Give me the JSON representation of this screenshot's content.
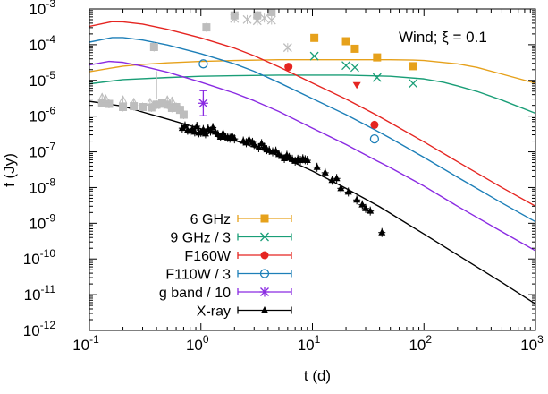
{
  "chart_data": {
    "type": "scatter",
    "title": "",
    "xlabel": "t (d)",
    "ylabel": "f (Jy)",
    "x_scale": "log",
    "y_scale": "log",
    "xlim": [
      0.1,
      1000
    ],
    "ylim": [
      1e-12,
      0.001
    ],
    "x_ticks": [
      {
        "value": 0.1,
        "base": "10",
        "exp": "-1"
      },
      {
        "value": 1,
        "base": "10",
        "exp": "0"
      },
      {
        "value": 10,
        "base": "10",
        "exp": "1"
      },
      {
        "value": 100,
        "base": "10",
        "exp": "2"
      },
      {
        "value": 1000,
        "base": "10",
        "exp": "3"
      }
    ],
    "y_ticks": [
      {
        "value": 1e-12,
        "base": "10",
        "exp": "-12"
      },
      {
        "value": 1e-11,
        "base": "10",
        "exp": "-11"
      },
      {
        "value": 1e-10,
        "base": "10",
        "exp": "-10"
      },
      {
        "value": 1e-09,
        "base": "10",
        "exp": "-9"
      },
      {
        "value": 1e-08,
        "base": "10",
        "exp": "-8"
      },
      {
        "value": 1e-07,
        "base": "10",
        "exp": "-7"
      },
      {
        "value": 1e-06,
        "base": "10",
        "exp": "-6"
      },
      {
        "value": 1e-05,
        "base": "10",
        "exp": "-5"
      },
      {
        "value": 0.0001,
        "base": "10",
        "exp": "-4"
      },
      {
        "value": 0.001,
        "base": "10",
        "exp": "-3"
      }
    ],
    "grid": false,
    "legend_position": "bottom-left",
    "annotation": "Wind; ξ = 0.1",
    "series": [
      {
        "name": "6 GHz",
        "color": "#e6a11b",
        "marker": "square",
        "points": [
          [
            10.4,
            0.000155
          ],
          [
            20,
            0.000125
          ],
          [
            24,
            7.7e-05
          ],
          [
            38,
            4.4e-05
          ],
          [
            80,
            2.5e-05
          ]
        ]
      },
      {
        "name": "9 GHz / 3",
        "color": "#1a9e77",
        "marker": "x",
        "points": [
          [
            10.4,
            4.8e-05
          ],
          [
            20,
            2.6e-05
          ],
          [
            24,
            2.3e-05
          ],
          [
            38,
            1.2e-05
          ],
          [
            80,
            8.2e-06
          ]
        ]
      },
      {
        "name": "F160W",
        "color": "#e52521",
        "marker": "filled-circle",
        "points": [
          [
            6.1,
            2.4e-05
          ],
          [
            36,
            5.7e-07
          ]
        ]
      },
      {
        "name": "F110W / 3",
        "color": "#1d7fb8",
        "marker": "open-circle",
        "points": [
          [
            1.05,
            2.9e-05
          ],
          [
            36,
            2.3e-07
          ]
        ]
      },
      {
        "name": "g band / 10",
        "color": "#8a2be2",
        "marker": "star",
        "points": [
          [
            1.05,
            2.3e-06
          ]
        ]
      },
      {
        "name": "X-ray",
        "color": "#000000",
        "marker": "filled-triangle",
        "points": [
          [
            0.68,
            4.6e-07
          ],
          [
            0.72,
            5.3e-07
          ],
          [
            0.76,
            4e-07
          ],
          [
            0.8,
            3.8e-07
          ],
          [
            0.84,
            4.3e-07
          ],
          [
            0.88,
            3.6e-07
          ],
          [
            0.92,
            5.2e-07
          ],
          [
            0.96,
            3.4e-07
          ],
          [
            1.0,
            3.5e-07
          ],
          [
            1.05,
            4.2e-07
          ],
          [
            1.1,
            3.2e-07
          ],
          [
            1.16,
            4.4e-07
          ],
          [
            1.22,
            3.8e-07
          ],
          [
            1.28,
            4.8e-07
          ],
          [
            1.35,
            3.6e-07
          ],
          [
            1.42,
            3.1e-07
          ],
          [
            1.5,
            2.6e-07
          ],
          [
            1.58,
            3.3e-07
          ],
          [
            1.66,
            2.6e-07
          ],
          [
            1.74,
            2.5e-07
          ],
          [
            1.82,
            2.4e-07
          ],
          [
            1.9,
            2.8e-07
          ],
          [
            2.0,
            2.3e-07
          ],
          [
            2.4,
            2e-07
          ],
          [
            2.55,
            1.8e-07
          ],
          [
            2.7,
            2.2e-07
          ],
          [
            2.9,
            1.85e-07
          ],
          [
            3.0,
            1.6e-07
          ],
          [
            3.3,
            1.3e-07
          ],
          [
            3.5,
            1.7e-07
          ],
          [
            3.7,
            1.35e-07
          ],
          [
            3.9,
            1.15e-07
          ],
          [
            4.1,
            1.1e-07
          ],
          [
            4.4,
            1e-07
          ],
          [
            4.7,
            1.05e-07
          ],
          [
            5.0,
            8.5e-08
          ],
          [
            5.3,
            7.5e-08
          ],
          [
            5.6,
            6.5e-08
          ],
          [
            5.9,
            8e-08
          ],
          [
            6.2,
            7e-08
          ],
          [
            6.6,
            6.2e-08
          ],
          [
            7.0,
            5.5e-08
          ],
          [
            7.4,
            6.2e-08
          ],
          [
            7.8,
            5.8e-08
          ],
          [
            8.2,
            6.4e-08
          ],
          [
            8.6,
            6e-08
          ],
          [
            9.0,
            5.8e-08
          ],
          [
            11,
            3.7e-08
          ],
          [
            13,
            2.6e-08
          ],
          [
            15,
            1.6e-08
          ],
          [
            16.5,
            1.8e-08
          ],
          [
            18,
            9.5e-09
          ],
          [
            21,
            7.5e-09
          ],
          [
            25,
            4.5e-09
          ],
          [
            28,
            3.3e-09
          ],
          [
            30,
            2.6e-09
          ],
          [
            33,
            2.2e-09
          ],
          [
            42,
            5.5e-10
          ]
        ]
      }
    ],
    "model_curves": [
      {
        "color": "#e6a11b",
        "points": [
          [
            0.1,
            1.75e-05
          ],
          [
            0.2,
            2.5e-05
          ],
          [
            0.3,
            2.8e-05
          ],
          [
            0.5,
            3.1e-05
          ],
          [
            1,
            3.4e-05
          ],
          [
            2,
            3.6e-05
          ],
          [
            5,
            3.8e-05
          ],
          [
            10,
            3.8e-05
          ],
          [
            20,
            3.8e-05
          ],
          [
            50,
            3.8e-05
          ],
          [
            80,
            3.7e-05
          ],
          [
            100,
            3.6e-05
          ],
          [
            200,
            2.9e-05
          ],
          [
            300,
            2.3e-05
          ],
          [
            500,
            1.5e-05
          ],
          [
            1000,
            8.3e-06
          ]
        ]
      },
      {
        "color": "#1a9e77",
        "points": [
          [
            0.1,
            8e-06
          ],
          [
            0.2,
            1.05e-05
          ],
          [
            0.5,
            1.2e-05
          ],
          [
            1,
            1.3e-05
          ],
          [
            2,
            1.35e-05
          ],
          [
            5,
            1.4e-05
          ],
          [
            10,
            1.4e-05
          ],
          [
            20,
            1.4e-05
          ],
          [
            50,
            1.3e-05
          ],
          [
            100,
            1.1e-05
          ],
          [
            150,
            8.8e-06
          ],
          [
            200,
            7e-06
          ],
          [
            300,
            4.9e-06
          ],
          [
            500,
            2.8e-06
          ],
          [
            1000,
            1.2e-06
          ]
        ]
      },
      {
        "color": "#e52521",
        "points": [
          [
            0.1,
            0.000325
          ],
          [
            0.16,
            0.00044
          ],
          [
            0.2,
            0.000435
          ],
          [
            0.3,
            0.000375
          ],
          [
            0.5,
            0.00027
          ],
          [
            1,
            0.000155
          ],
          [
            2,
            8e-05
          ],
          [
            3,
            4.9e-05
          ],
          [
            5,
            2.4e-05
          ],
          [
            10,
            8.4e-06
          ],
          [
            20,
            3e-06
          ],
          [
            37,
            1.1e-06
          ],
          [
            50,
            6.5e-07
          ],
          [
            100,
            1.9e-07
          ],
          [
            200,
            5.3e-08
          ],
          [
            500,
            1e-08
          ],
          [
            1000,
            3e-09
          ]
        ]
      },
      {
        "color": "#1d7fb8",
        "points": [
          [
            0.1,
            0.000118
          ],
          [
            0.16,
            0.000158
          ],
          [
            0.2,
            0.000158
          ],
          [
            0.3,
            0.000135
          ],
          [
            0.5,
            9.8e-05
          ],
          [
            1,
            5.6e-05
          ],
          [
            2,
            2.9e-05
          ],
          [
            3,
            1.8e-05
          ],
          [
            5,
            8.7e-06
          ],
          [
            10,
            3.1e-06
          ],
          [
            20,
            1.1e-06
          ],
          [
            37,
            4e-07
          ],
          [
            50,
            2.4e-07
          ],
          [
            100,
            7e-08
          ],
          [
            200,
            1.95e-08
          ],
          [
            500,
            3.7e-09
          ],
          [
            1000,
            1.1e-09
          ]
        ]
      },
      {
        "color": "#8a2be2",
        "points": [
          [
            0.1,
            2.7e-05
          ],
          [
            0.15,
            3.4e-05
          ],
          [
            0.2,
            3.2e-05
          ],
          [
            0.3,
            2.5e-05
          ],
          [
            0.5,
            1.7e-05
          ],
          [
            1,
            8.9e-06
          ],
          [
            2,
            4.4e-06
          ],
          [
            3,
            2.7e-06
          ],
          [
            5,
            1.35e-06
          ],
          [
            10,
            4.6e-07
          ],
          [
            20,
            1.6e-07
          ],
          [
            37,
            5.8e-08
          ],
          [
            50,
            3.6e-08
          ],
          [
            100,
            1.1e-08
          ],
          [
            200,
            3e-09
          ],
          [
            500,
            5.8e-10
          ],
          [
            1000,
            1.7e-10
          ]
        ]
      },
      {
        "color": "#000000",
        "points": [
          [
            0.1,
            2.6e-06
          ],
          [
            0.2,
            1.9e-06
          ],
          [
            0.3,
            1.3e-06
          ],
          [
            0.5,
            8.3e-07
          ],
          [
            1,
            4.4e-07
          ],
          [
            2,
            2.1e-07
          ],
          [
            3,
            1.35e-07
          ],
          [
            5,
            7.8e-08
          ],
          [
            10,
            2.9e-08
          ],
          [
            20,
            9.5e-09
          ],
          [
            40,
            2.9e-09
          ],
          [
            100,
            5e-10
          ],
          [
            200,
            1.3e-10
          ],
          [
            500,
            2.2e-11
          ],
          [
            1000,
            5.5e-12
          ]
        ]
      }
    ],
    "gray_points": [
      {
        "marker": "x",
        "points": [
          [
            2.0,
            0.00054
          ],
          [
            2.6,
            0.000505
          ],
          [
            3.2,
            0.000465
          ],
          [
            3.7,
            0.000555
          ],
          [
            4.3,
            0.000485
          ],
          [
            6.0,
            8.3e-05
          ]
        ]
      },
      {
        "marker": "square",
        "points": [
          [
            0.38,
            8.6e-05
          ],
          [
            1.12,
            0.000305
          ],
          [
            2.0,
            0.00066
          ],
          [
            3.2,
            0.00066
          ],
          [
            4.3,
            0.00082
          ]
        ]
      },
      {
        "marker": "square",
        "points": [
          [
            0.13,
            2.4e-06
          ],
          [
            0.15,
            2.2e-06
          ],
          [
            0.2,
            1.8e-06
          ],
          [
            0.25,
            1.9e-06
          ],
          [
            0.3,
            1.8e-06
          ],
          [
            0.36,
            1.75e-06
          ],
          [
            0.4,
            2.1e-06
          ],
          [
            0.45,
            2.3e-06
          ],
          [
            0.5,
            2.1e-06
          ],
          [
            0.55,
            1.7e-06
          ],
          [
            0.6,
            1.8e-06
          ],
          [
            0.65,
            1.5e-06
          ],
          [
            0.7,
            1.1e-06
          ]
        ]
      },
      {
        "marker": "triangle",
        "points": [
          [
            0.13,
            3.3e-06
          ],
          [
            0.14,
            3e-06
          ],
          [
            0.2,
            2.8e-06
          ],
          [
            0.25,
            2.4e-06
          ],
          [
            0.35,
            2.4e-06
          ],
          [
            0.42,
            2.1e-06
          ],
          [
            0.5,
            2.8e-06
          ],
          [
            0.55,
            2.6e-06
          ]
        ]
      }
    ],
    "triangle_marker": {
      "color": "#e52521",
      "point": [
        25,
        7.5e-06
      ]
    },
    "gray_bar": {
      "x": 0.4,
      "y_top": 1.8e-05,
      "y_bottom": 3e-06
    }
  }
}
